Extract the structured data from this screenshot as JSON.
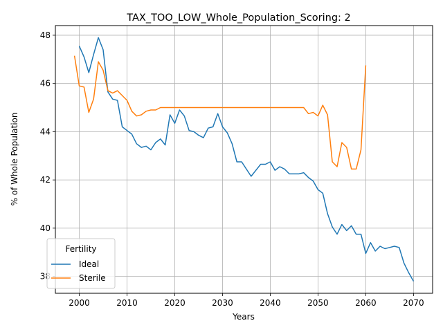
{
  "chart_data": {
    "type": "line",
    "title": "TAX_TOO_LOW_Whole_Population_Scoring: 2",
    "xlabel": "Years",
    "ylabel": "% of Whole Population",
    "xlim": [
      1995,
      2074
    ],
    "ylim": [
      37.3,
      48.4
    ],
    "xticks": [
      2000,
      2010,
      2020,
      2030,
      2040,
      2050,
      2060,
      2070
    ],
    "yticks": [
      38,
      40,
      42,
      44,
      46,
      48
    ],
    "grid": true,
    "legend": {
      "title": "Fertility",
      "placement": "lower-left"
    },
    "series": [
      {
        "name": "Ideal",
        "color": "#1f77b4",
        "x": [
          2000,
          2001,
          2002,
          2003,
          2004,
          2005,
          2006,
          2007,
          2008,
          2009,
          2010,
          2011,
          2012,
          2013,
          2014,
          2015,
          2016,
          2017,
          2018,
          2019,
          2020,
          2021,
          2022,
          2023,
          2024,
          2025,
          2026,
          2027,
          2028,
          2029,
          2030,
          2031,
          2032,
          2033,
          2034,
          2035,
          2036,
          2037,
          2038,
          2039,
          2040,
          2041,
          2042,
          2043,
          2044,
          2045,
          2046,
          2047,
          2048,
          2049,
          2050,
          2051,
          2052,
          2053,
          2054,
          2055,
          2056,
          2057,
          2058,
          2059,
          2060,
          2061,
          2062,
          2063,
          2064,
          2065,
          2066,
          2067,
          2068,
          2069,
          2070
        ],
        "values": [
          47.55,
          47.1,
          46.45,
          47.2,
          47.9,
          47.4,
          45.65,
          45.35,
          45.3,
          44.2,
          44.05,
          43.9,
          43.5,
          43.35,
          43.4,
          43.25,
          43.55,
          43.7,
          43.45,
          44.7,
          44.35,
          44.9,
          44.65,
          44.05,
          44.0,
          43.85,
          43.75,
          44.15,
          44.2,
          44.75,
          44.2,
          43.95,
          43.5,
          42.75,
          42.75,
          42.45,
          42.15,
          42.4,
          42.65,
          42.65,
          42.75,
          42.4,
          42.55,
          42.45,
          42.25,
          42.25,
          42.25,
          42.3,
          42.1,
          41.95,
          41.6,
          41.45,
          40.6,
          40.05,
          39.75,
          40.15,
          39.9,
          40.1,
          39.75,
          39.75,
          38.95,
          39.4,
          39.05,
          39.25,
          39.15,
          39.2,
          39.25,
          39.2,
          38.55,
          38.15,
          37.8
        ]
      },
      {
        "name": "Sterile",
        "color": "#ff7f0e",
        "x": [
          1999,
          2000,
          2001,
          2002,
          2003,
          2004,
          2005,
          2006,
          2007,
          2008,
          2009,
          2010,
          2011,
          2012,
          2013,
          2014,
          2015,
          2016,
          2017,
          2018,
          2019,
          2020,
          2021,
          2022,
          2023,
          2024,
          2025,
          2026,
          2027,
          2028,
          2029,
          2030,
          2031,
          2032,
          2033,
          2034,
          2035,
          2036,
          2037,
          2038,
          2039,
          2040,
          2041,
          2042,
          2043,
          2044,
          2045,
          2046,
          2047,
          2048,
          2049,
          2050,
          2051,
          2052,
          2053,
          2054,
          2055,
          2056,
          2057,
          2058,
          2059,
          2060
        ],
        "values": [
          47.15,
          45.9,
          45.85,
          44.8,
          45.35,
          46.9,
          46.55,
          45.7,
          45.6,
          45.7,
          45.5,
          45.3,
          44.85,
          44.65,
          44.7,
          44.85,
          44.9,
          44.9,
          45.0,
          45.0,
          45.0,
          45.0,
          45.0,
          45.0,
          45.0,
          45.0,
          45.0,
          45.0,
          45.0,
          45.0,
          45.0,
          45.0,
          45.0,
          45.0,
          45.0,
          45.0,
          45.0,
          45.0,
          45.0,
          45.0,
          45.0,
          45.0,
          45.0,
          45.0,
          45.0,
          45.0,
          45.0,
          45.0,
          45.0,
          44.75,
          44.8,
          44.65,
          45.1,
          44.7,
          42.75,
          42.55,
          43.55,
          43.35,
          42.45,
          42.45,
          43.25,
          46.75
        ]
      }
    ]
  }
}
